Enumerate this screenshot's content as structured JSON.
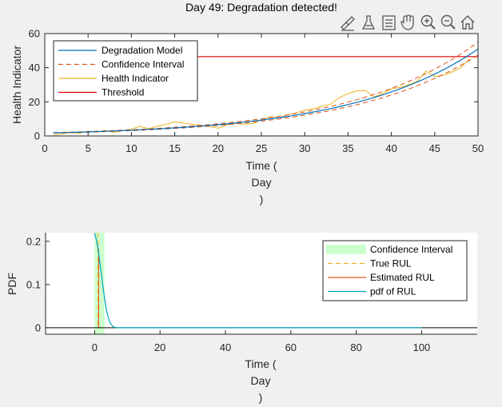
{
  "toolbar": {
    "items": [
      {
        "name": "brush-icon"
      },
      {
        "name": "flask-icon"
      },
      {
        "name": "legend-icon"
      },
      {
        "name": "pan-hand-icon"
      },
      {
        "name": "zoom-in-icon"
      },
      {
        "name": "zoom-out-icon"
      },
      {
        "name": "home-icon"
      }
    ]
  },
  "chart_data": [
    {
      "type": "line",
      "title": "Day 49: Degradation detected!",
      "xlabel": [
        "Time (",
        "Day",
        ")"
      ],
      "ylabel": "Health Indicator",
      "xlim": [
        0,
        50
      ],
      "ylim": [
        0,
        60
      ],
      "xticks": [
        "0",
        "5",
        "10",
        "15",
        "20",
        "25",
        "30",
        "35",
        "40",
        "45",
        "50"
      ],
      "yticks": [
        "0",
        "20",
        "40",
        "60"
      ],
      "legend": [
        "Degradation Model",
        "Confidence Interval",
        "Health Indicator",
        "Threshold"
      ],
      "colors": {
        "model": "#0072bd",
        "ci": "#d95319",
        "hi": "#edb120",
        "threshold": "#e00000"
      },
      "threshold": 46.5,
      "model": {
        "a": 1.7,
        "b": 0.068,
        "day_start": 1,
        "day_end": 50
      },
      "ci_factor": [
        0.93,
        1.08
      ],
      "health_indicator": {
        "x": [
          1,
          2,
          3,
          4,
          5,
          6,
          7,
          8,
          9,
          10,
          11,
          12,
          13,
          14,
          15,
          16,
          17,
          18,
          19,
          20,
          21,
          22,
          23,
          24,
          25,
          26,
          27,
          28,
          29,
          30,
          31,
          32,
          33,
          34,
          35,
          36,
          37,
          38,
          39,
          40,
          41,
          42,
          43,
          44,
          45,
          46,
          47,
          48,
          49
        ],
        "y": [
          0.5,
          1.2,
          2.0,
          1.5,
          2.8,
          2.2,
          3.3,
          2.0,
          3.1,
          4.0,
          5.6,
          4.2,
          5.7,
          6.8,
          8.3,
          7.5,
          6.8,
          6.2,
          5.5,
          4.6,
          6.4,
          7.3,
          7.0,
          7.2,
          9.5,
          11.2,
          10.6,
          12.4,
          13.5,
          15.2,
          15.9,
          17.5,
          18.6,
          22.5,
          24.8,
          26.4,
          26.6,
          22.8,
          25.0,
          27.6,
          28.4,
          30.0,
          32.0,
          38.0,
          34.8,
          35.5,
          37.5,
          40.0,
          45.0
        ]
      }
    },
    {
      "type": "line",
      "title": "",
      "xlabel": [
        "Time (",
        "Day",
        ")"
      ],
      "ylabel": "PDF",
      "xlim": [
        -15,
        117
      ],
      "ylim": [
        -0.015,
        0.22
      ],
      "xticks": [
        "0",
        "20",
        "40",
        "60",
        "80",
        "100"
      ],
      "yticks": [
        "0",
        "0.1",
        "0.2"
      ],
      "legend": [
        "Confidence Interval",
        "True RUL",
        "Estimated RUL",
        "pdf of RUL"
      ],
      "colors": {
        "ci_fill": "#ccffcc",
        "true_rul": "#edb120",
        "est_rul": "#d95319",
        "pdf": "#00a2c0",
        "baseline": "#000000"
      },
      "confidence_interval": [
        0,
        3
      ],
      "true_rul": 1,
      "estimated_rul": 1,
      "pdf": {
        "x": [
          0.0,
          0.5,
          1.0,
          1.5,
          2.0,
          2.5,
          3.0,
          3.5,
          4.0,
          4.5,
          5.0,
          5.5,
          6.0,
          7.0,
          8.0,
          10.0,
          20.0,
          40.0,
          60.0,
          80.0,
          100.0
        ],
        "y": [
          0.219,
          0.205,
          0.185,
          0.158,
          0.128,
          0.098,
          0.07,
          0.046,
          0.028,
          0.016,
          0.008,
          0.004,
          0.001,
          0,
          0,
          0,
          0,
          0,
          0,
          0,
          0
        ]
      }
    }
  ]
}
